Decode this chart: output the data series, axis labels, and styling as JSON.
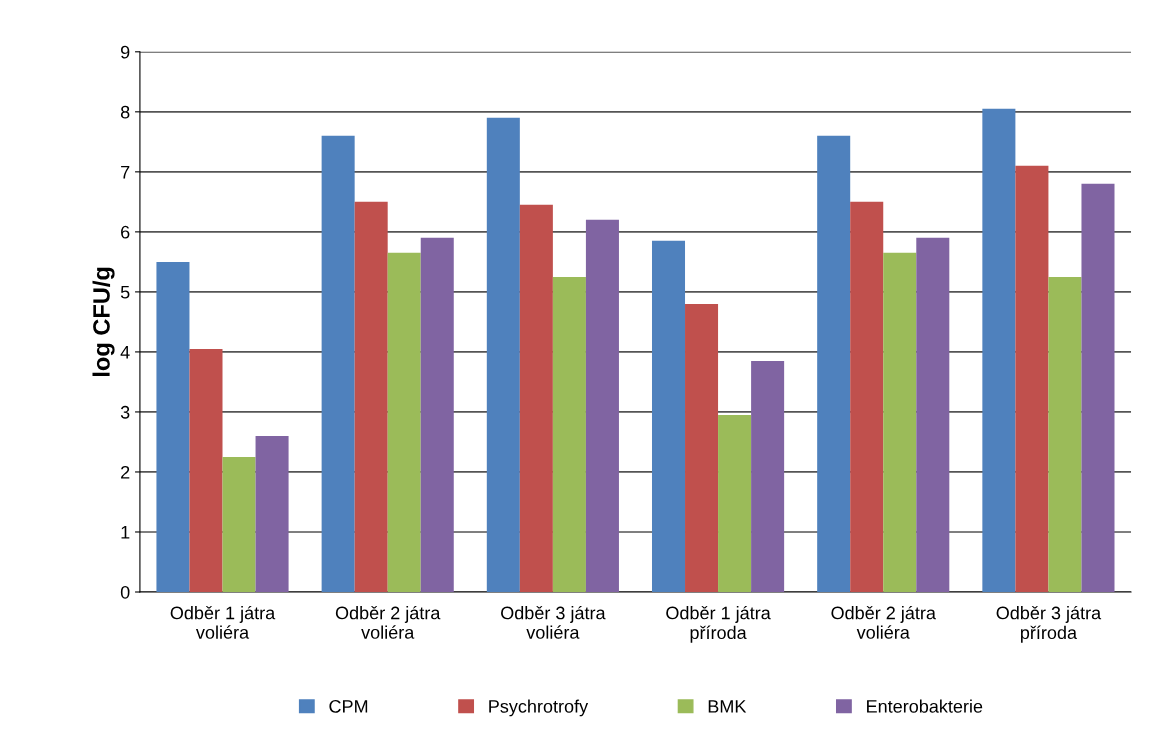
{
  "chart_data": {
    "type": "bar",
    "ylabel": "log CFU/g",
    "categories": [
      "Odběr 1 játra\nvoliéra",
      "Odběr 2 játra\nvoliéra",
      "Odběr 3 játra\nvoliéra",
      "Odběr 1 játra\npříroda",
      "Odběr 2 játra\nvoliéra",
      "Odběr 3 játra\npříroda"
    ],
    "series": [
      {
        "name": "CPM",
        "color": "#4f81bd",
        "values": [
          5.5,
          7.6,
          7.9,
          5.85,
          7.6,
          8.05
        ]
      },
      {
        "name": "Psychrotrofy",
        "color": "#c0504d",
        "values": [
          4.05,
          6.5,
          6.45,
          4.8,
          6.5,
          7.1
        ]
      },
      {
        "name": "BMK",
        "color": "#9bbb59",
        "values": [
          2.25,
          5.65,
          5.25,
          2.95,
          5.65,
          5.25
        ]
      },
      {
        "name": "Enterobakterie",
        "color": "#8064a2",
        "values": [
          2.6,
          5.9,
          6.2,
          3.85,
          5.9,
          6.8
        ]
      }
    ],
    "ylim": [
      0,
      9
    ],
    "yticks": [
      0,
      1,
      2,
      3,
      4,
      5,
      6,
      7,
      8,
      9
    ],
    "grid": "y",
    "legend": "bottom"
  }
}
